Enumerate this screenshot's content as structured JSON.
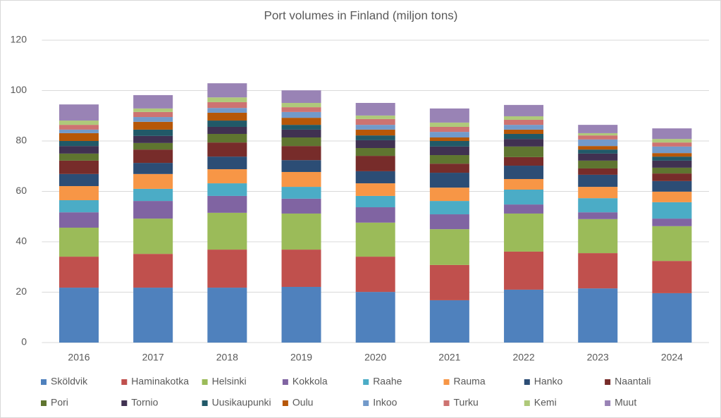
{
  "chart_data": {
    "type": "stacked_bar",
    "title": "Port volumes in Finland (miljon tons)",
    "categories": [
      "2016",
      "2017",
      "2018",
      "2019",
      "2020",
      "2021",
      "2022",
      "2023",
      "2024"
    ],
    "ylim": [
      0,
      120
    ],
    "yticks": [
      0,
      20,
      40,
      60,
      80,
      100,
      120
    ],
    "grid": true,
    "legend": "bottom",
    "series": [
      {
        "name": "Sköldvik",
        "color": "#4f81bd",
        "values": [
          21.8,
          21.8,
          21.8,
          22.1,
          20.1,
          16.8,
          21.0,
          21.5,
          19.6
        ]
      },
      {
        "name": "Haminakotka",
        "color": "#c0504d",
        "values": [
          12.3,
          13.4,
          15.1,
          14.8,
          14.0,
          14.0,
          15.1,
          14.0,
          12.8
        ]
      },
      {
        "name": "Helsinki",
        "color": "#9bbb59",
        "values": [
          11.5,
          14.0,
          14.6,
          14.3,
          13.5,
          14.2,
          15.1,
          13.5,
          13.8
        ]
      },
      {
        "name": "Kokkola",
        "color": "#8064a2",
        "values": [
          6.1,
          7.0,
          6.7,
          5.9,
          6.1,
          5.9,
          3.6,
          2.7,
          3.0
        ]
      },
      {
        "name": "Raahe",
        "color": "#4bacc6",
        "values": [
          4.8,
          4.8,
          5.0,
          4.7,
          4.5,
          5.3,
          5.9,
          5.6,
          6.5
        ]
      },
      {
        "name": "Rauma",
        "color": "#f79646",
        "values": [
          5.6,
          5.9,
          5.6,
          5.9,
          5.0,
          5.3,
          4.2,
          4.5,
          4.2
        ]
      },
      {
        "name": "Hanko",
        "color": "#2c4d75",
        "values": [
          4.8,
          4.4,
          5.0,
          4.7,
          4.8,
          5.9,
          5.3,
          4.8,
          4.2
        ]
      },
      {
        "name": "Naantali",
        "color": "#772c2a",
        "values": [
          5.3,
          5.3,
          5.6,
          5.6,
          6.1,
          3.6,
          3.4,
          2.5,
          3.0
        ]
      },
      {
        "name": "Pori",
        "color": "#5f7530",
        "values": [
          2.8,
          2.6,
          3.4,
          3.4,
          3.1,
          3.4,
          4.2,
          3.1,
          2.3
        ]
      },
      {
        "name": "Tornio",
        "color": "#403151",
        "values": [
          3.0,
          2.8,
          2.8,
          3.1,
          3.1,
          3.4,
          3.0,
          2.8,
          2.8
        ]
      },
      {
        "name": "Uusikaupunki",
        "color": "#215968",
        "values": [
          2.0,
          2.5,
          2.5,
          1.9,
          1.9,
          2.2,
          2.0,
          1.6,
          1.6
        ]
      },
      {
        "name": "Oulu",
        "color": "#b65708",
        "values": [
          3.1,
          3.1,
          3.1,
          2.8,
          2.3,
          1.4,
          1.7,
          1.4,
          1.4
        ]
      },
      {
        "name": "Inkoo",
        "color": "#729aca",
        "values": [
          1.4,
          1.9,
          1.9,
          2.3,
          1.9,
          2.2,
          1.9,
          2.6,
          2.6
        ]
      },
      {
        "name": "Turku",
        "color": "#cd7371",
        "values": [
          1.9,
          2.0,
          2.3,
          1.9,
          2.3,
          2.0,
          2.0,
          1.6,
          1.6
        ]
      },
      {
        "name": "Kemi",
        "color": "#afc97a",
        "values": [
          1.7,
          1.4,
          1.9,
          1.7,
          1.4,
          1.7,
          1.4,
          0.9,
          1.4
        ]
      },
      {
        "name": "Muut",
        "color": "#9983b5",
        "values": [
          6.4,
          5.3,
          5.6,
          5.0,
          5.0,
          5.6,
          4.5,
          3.3,
          4.2
        ]
      }
    ]
  }
}
